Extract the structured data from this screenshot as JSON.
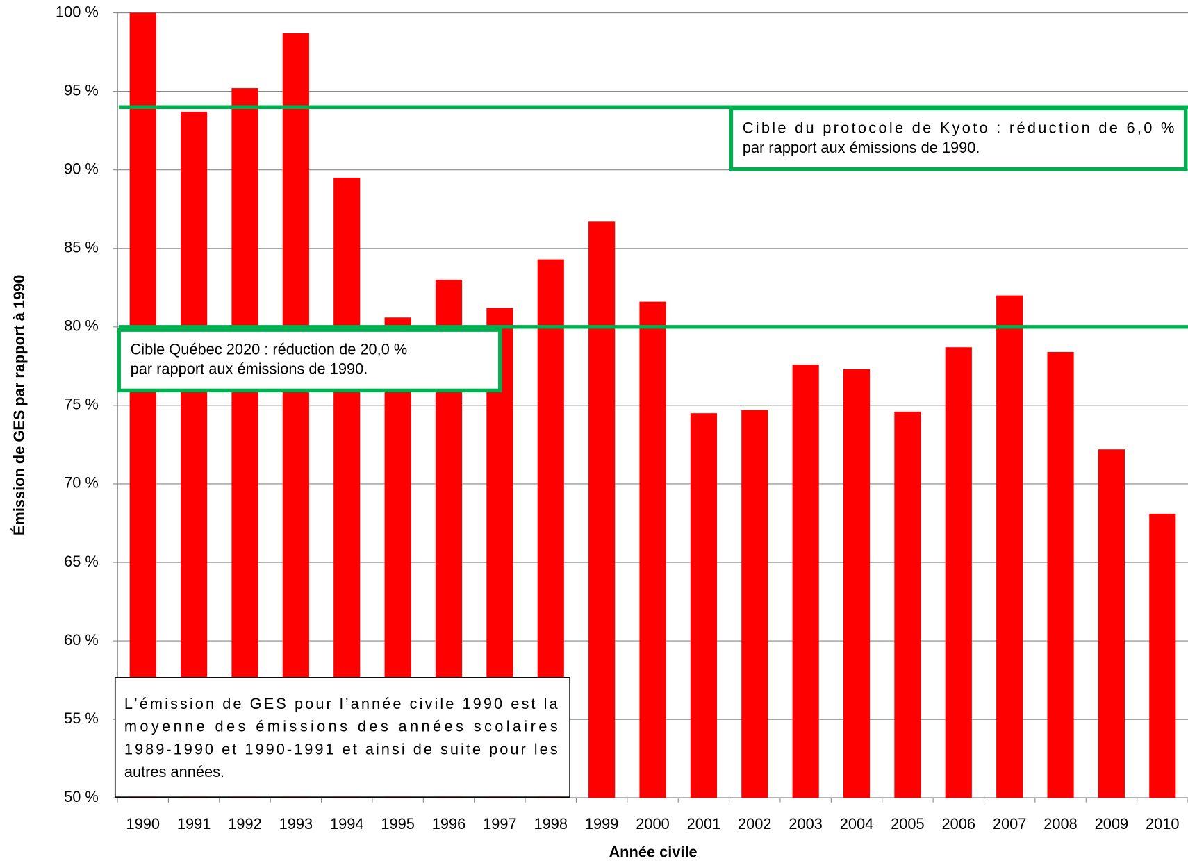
{
  "chart_data": {
    "type": "bar",
    "categories": [
      "1990",
      "1991",
      "1992",
      "1993",
      "1994",
      "1995",
      "1996",
      "1997",
      "1998",
      "1999",
      "2000",
      "2001",
      "2002",
      "2003",
      "2004",
      "2005",
      "2006",
      "2007",
      "2008",
      "2009",
      "2010"
    ],
    "values": [
      100,
      93.7,
      95.2,
      98.7,
      89.5,
      80.6,
      83.0,
      81.2,
      84.3,
      86.7,
      81.6,
      74.5,
      74.7,
      77.6,
      77.3,
      74.6,
      78.7,
      82.0,
      78.4,
      72.2,
      68.1
    ],
    "color": "#ff0000",
    "ylim": [
      50,
      100
    ],
    "yticks": [
      {
        "value": 50,
        "label": "50 %"
      },
      {
        "value": 55,
        "label": "55 %"
      },
      {
        "value": 60,
        "label": "60 %"
      },
      {
        "value": 65,
        "label": "65 %"
      },
      {
        "value": 70,
        "label": "70 %"
      },
      {
        "value": 75,
        "label": "75 %"
      },
      {
        "value": 80,
        "label": "80 %"
      },
      {
        "value": 85,
        "label": "85 %"
      },
      {
        "value": 90,
        "label": "90 %"
      },
      {
        "value": 95,
        "label": "95 %"
      },
      {
        "value": 100,
        "label": "100 %"
      }
    ],
    "grid": true,
    "x_label": "Année civile",
    "y_label": "Émission de GES par rapport à 1990",
    "reference_lines": [
      {
        "value": 94,
        "color": "#00b050",
        "lines": [
          "Cible du protocole de Kyoto : réduction de 6,0 %",
          "par rapport aux émissions de 1990."
        ]
      },
      {
        "value": 80,
        "color": "#00b050",
        "lines": [
          "Cible Québec 2020 : réduction de 20,0 %",
          "par rapport aux émissions de 1990."
        ]
      }
    ],
    "note": [
      "L’émission de GES pour l’année civile 1990 est la",
      "moyenne des émissions des années scolaires",
      "1989-1990 et 1990-1991 et ainsi de suite pour les",
      "autres années."
    ]
  }
}
